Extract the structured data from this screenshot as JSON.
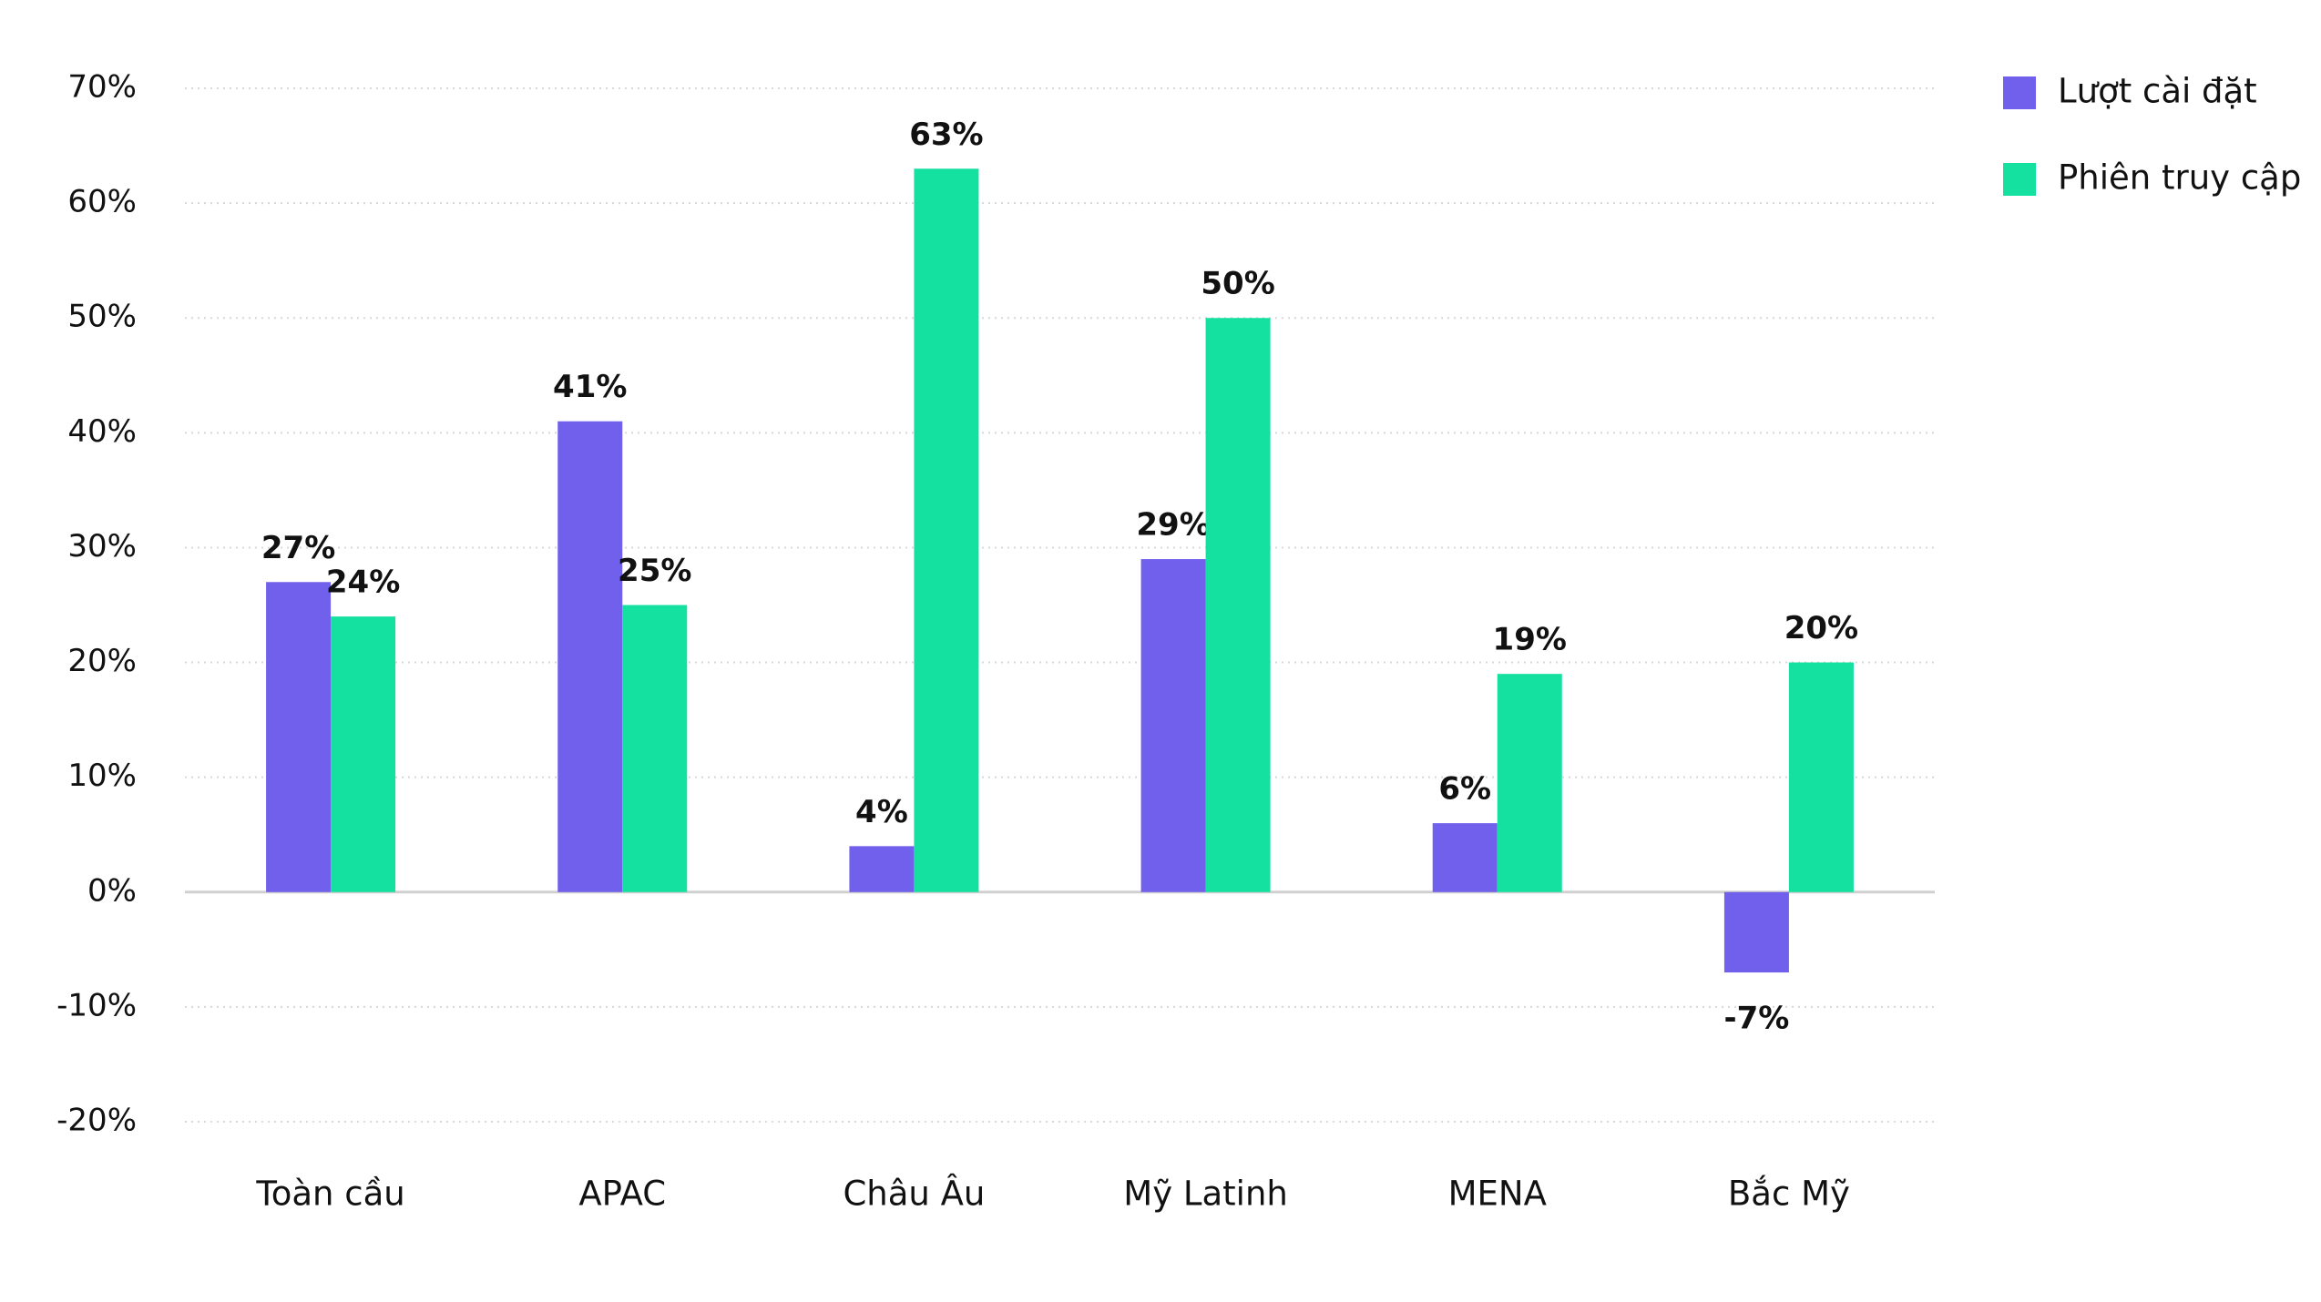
{
  "chart_data": {
    "type": "bar",
    "categories": [
      "Toàn cầu",
      "APAC",
      "Châu Âu",
      "Mỹ Latinh",
      "MENA",
      "Bắc Mỹ"
    ],
    "series": [
      {
        "name": "Lượt cài đặt",
        "color": "#7060eb",
        "values": [
          27,
          41,
          4,
          29,
          6,
          -7
        ],
        "value_labels": [
          "27%",
          "41%",
          "4%",
          "29%",
          "6%",
          "-7%"
        ]
      },
      {
        "name": "Phiên truy cập",
        "color": "#14e0a0",
        "values": [
          24,
          25,
          63,
          50,
          19,
          20
        ],
        "value_labels": [
          "24%",
          "25%",
          "63%",
          "50%",
          "19%",
          "20%"
        ]
      }
    ],
    "ylim": [
      -20,
      70
    ],
    "yticks": [
      {
        "value": -20,
        "label": "-20%"
      },
      {
        "value": -10,
        "label": "-10%"
      },
      {
        "value": 0,
        "label": "0%"
      },
      {
        "value": 10,
        "label": "10%"
      },
      {
        "value": 20,
        "label": "20%"
      },
      {
        "value": 30,
        "label": "30%"
      },
      {
        "value": 40,
        "label": "40%"
      },
      {
        "value": 50,
        "label": "50%"
      },
      {
        "value": 60,
        "label": "60%"
      },
      {
        "value": 70,
        "label": "70%"
      }
    ],
    "grid": true,
    "legend": "top-right"
  }
}
